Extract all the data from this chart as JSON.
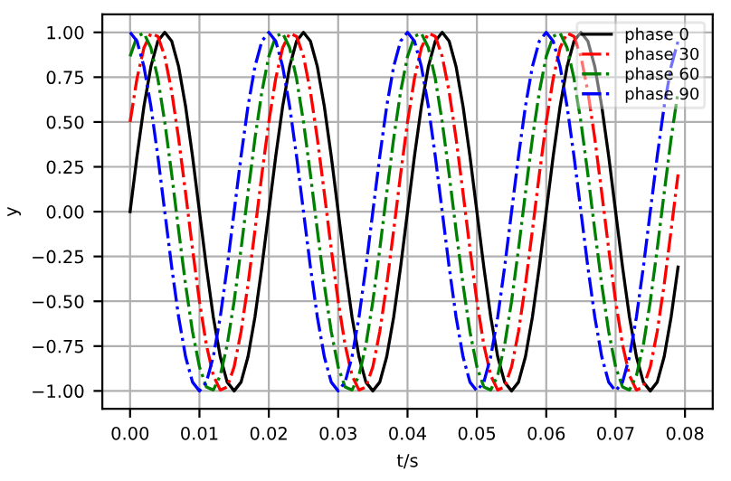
{
  "chart_data": {
    "type": "line",
    "xlabel": "t/s",
    "ylabel": "y",
    "grid": true,
    "legend": "top right",
    "xlim": [
      -0.004,
      0.084
    ],
    "ylim": [
      -1.1,
      1.1
    ],
    "xticks": [
      {
        "value": 0,
        "label": "0.00"
      },
      {
        "value": 0.01,
        "label": "0.01"
      },
      {
        "value": 0.02,
        "label": "0.02"
      },
      {
        "value": 0.03,
        "label": "0.03"
      },
      {
        "value": 0.04,
        "label": "0.04"
      },
      {
        "value": 0.05,
        "label": "0.05"
      },
      {
        "value": 0.06,
        "label": "0.06"
      },
      {
        "value": 0.07,
        "label": "0.07"
      },
      {
        "value": 0.08,
        "label": "0.08"
      }
    ],
    "yticks": [
      {
        "value": -1,
        "label": "−1.00"
      },
      {
        "value": -0.75,
        "label": "−0.75"
      },
      {
        "value": -0.5,
        "label": "−0.50"
      },
      {
        "value": -0.25,
        "label": "−0.25"
      },
      {
        "value": 0,
        "label": "0.00"
      },
      {
        "value": 0.25,
        "label": "0.25"
      },
      {
        "value": 0.5,
        "label": "0.50"
      },
      {
        "value": 0.75,
        "label": "0.75"
      },
      {
        "value": 1,
        "label": "1.00"
      }
    ],
    "x": [
      0,
      0.001,
      0.002,
      0.003,
      0.004,
      0.005,
      0.006,
      0.007,
      0.008,
      0.009,
      0.01,
      0.011,
      0.012,
      0.013,
      0.014,
      0.015,
      0.016,
      0.017,
      0.018,
      0.019,
      0.02,
      0.021,
      0.022,
      0.023,
      0.024,
      0.025,
      0.026,
      0.027,
      0.028,
      0.029,
      0.03,
      0.031,
      0.032,
      0.033,
      0.034,
      0.035,
      0.036,
      0.037,
      0.038,
      0.039,
      0.04,
      0.041,
      0.042,
      0.043,
      0.044,
      0.045,
      0.046,
      0.047,
      0.048,
      0.049,
      0.05,
      0.051,
      0.052,
      0.053,
      0.054,
      0.055,
      0.056,
      0.057,
      0.058,
      0.059,
      0.06,
      0.061,
      0.062,
      0.063,
      0.064,
      0.065,
      0.066,
      0.067,
      0.068,
      0.069,
      0.07,
      0.071,
      0.072,
      0.073,
      0.074,
      0.075,
      0.076,
      0.077,
      0.078,
      0.079
    ],
    "series": [
      {
        "name": "phase 0",
        "color": "#000000",
        "line_style": "solid",
        "values": [
          0,
          0.309,
          0.588,
          0.809,
          0.951,
          1,
          0.951,
          0.809,
          0.588,
          0.309,
          0,
          -0.309,
          -0.588,
          -0.809,
          -0.951,
          -1,
          -0.951,
          -0.809,
          -0.588,
          -0.309,
          0,
          0.309,
          0.588,
          0.809,
          0.951,
          1,
          0.951,
          0.809,
          0.588,
          0.309,
          0,
          -0.309,
          -0.588,
          -0.809,
          -0.951,
          -1,
          -0.951,
          -0.809,
          -0.588,
          -0.309,
          0,
          0.309,
          0.588,
          0.809,
          0.951,
          1,
          0.951,
          0.809,
          0.588,
          0.309,
          0,
          -0.309,
          -0.588,
          -0.809,
          -0.951,
          -1,
          -0.951,
          -0.809,
          -0.588,
          -0.309,
          0,
          0.309,
          0.588,
          0.809,
          0.951,
          1,
          0.951,
          0.809,
          0.588,
          0.309,
          0,
          -0.309,
          -0.588,
          -0.809,
          -0.951,
          -1,
          -0.951,
          -0.809,
          -0.588,
          -0.309
        ]
      },
      {
        "name": "phase 30",
        "color": "#ff0000",
        "line_style": "dashdot",
        "values": [
          0.5,
          0.743,
          0.914,
          0.995,
          0.978,
          0.866,
          0.669,
          0.407,
          0.105,
          -0.208,
          -0.5,
          -0.743,
          -0.914,
          -0.995,
          -0.978,
          -0.866,
          -0.669,
          -0.407,
          -0.105,
          0.208,
          0.5,
          0.743,
          0.914,
          0.995,
          0.978,
          0.866,
          0.669,
          0.407,
          0.105,
          -0.208,
          -0.5,
          -0.743,
          -0.914,
          -0.995,
          -0.978,
          -0.866,
          -0.669,
          -0.407,
          -0.105,
          0.208,
          0.5,
          0.743,
          0.914,
          0.995,
          0.978,
          0.866,
          0.669,
          0.407,
          0.105,
          -0.208,
          -0.5,
          -0.743,
          -0.914,
          -0.995,
          -0.978,
          -0.866,
          -0.669,
          -0.407,
          -0.105,
          0.208,
          0.5,
          0.743,
          0.914,
          0.995,
          0.978,
          0.866,
          0.669,
          0.407,
          0.105,
          -0.208,
          -0.5,
          -0.743,
          -0.914,
          -0.995,
          -0.978,
          -0.866,
          -0.669,
          -0.407,
          -0.105,
          0.208
        ]
      },
      {
        "name": "phase 60",
        "color": "#008000",
        "line_style": "dashdot",
        "values": [
          0.866,
          0.978,
          0.995,
          0.914,
          0.743,
          0.5,
          0.208,
          -0.105,
          -0.407,
          -0.669,
          -0.866,
          -0.978,
          -0.995,
          -0.914,
          -0.743,
          -0.5,
          -0.208,
          0.105,
          0.407,
          0.669,
          0.866,
          0.978,
          0.995,
          0.914,
          0.743,
          0.5,
          0.208,
          -0.105,
          -0.407,
          -0.669,
          -0.866,
          -0.978,
          -0.995,
          -0.914,
          -0.743,
          -0.5,
          -0.208,
          0.105,
          0.407,
          0.669,
          0.866,
          0.978,
          0.995,
          0.914,
          0.743,
          0.5,
          0.208,
          -0.105,
          -0.407,
          -0.669,
          -0.866,
          -0.978,
          -0.995,
          -0.914,
          -0.743,
          -0.5,
          -0.208,
          0.105,
          0.407,
          0.669,
          0.866,
          0.978,
          0.995,
          0.914,
          0.743,
          0.5,
          0.208,
          -0.105,
          -0.407,
          -0.669,
          -0.866,
          -0.978,
          -0.995,
          -0.914,
          -0.743,
          -0.5,
          -0.208,
          0.105,
          0.407,
          0.669
        ]
      },
      {
        "name": "phase 90",
        "color": "#0000ff",
        "line_style": "dashdot",
        "values": [
          1,
          0.951,
          0.809,
          0.588,
          0.309,
          0,
          -0.309,
          -0.588,
          -0.809,
          -0.951,
          -1,
          -0.951,
          -0.809,
          -0.588,
          -0.309,
          0,
          0.309,
          0.588,
          0.809,
          0.951,
          1,
          0.951,
          0.809,
          0.588,
          0.309,
          0,
          -0.309,
          -0.588,
          -0.809,
          -0.951,
          -1,
          -0.951,
          -0.809,
          -0.588,
          -0.309,
          0,
          0.309,
          0.588,
          0.809,
          0.951,
          1,
          0.951,
          0.809,
          0.588,
          0.309,
          0,
          -0.309,
          -0.588,
          -0.809,
          -0.951,
          -1,
          -0.951,
          -0.809,
          -0.588,
          -0.309,
          0,
          0.309,
          0.588,
          0.809,
          0.951,
          1,
          0.951,
          0.809,
          0.588,
          0.309,
          0,
          -0.309,
          -0.588,
          -0.809,
          -0.951,
          -1,
          -0.951,
          -0.809,
          -0.588,
          -0.309,
          0,
          0.309,
          0.588,
          0.809,
          0.951
        ]
      }
    ]
  }
}
